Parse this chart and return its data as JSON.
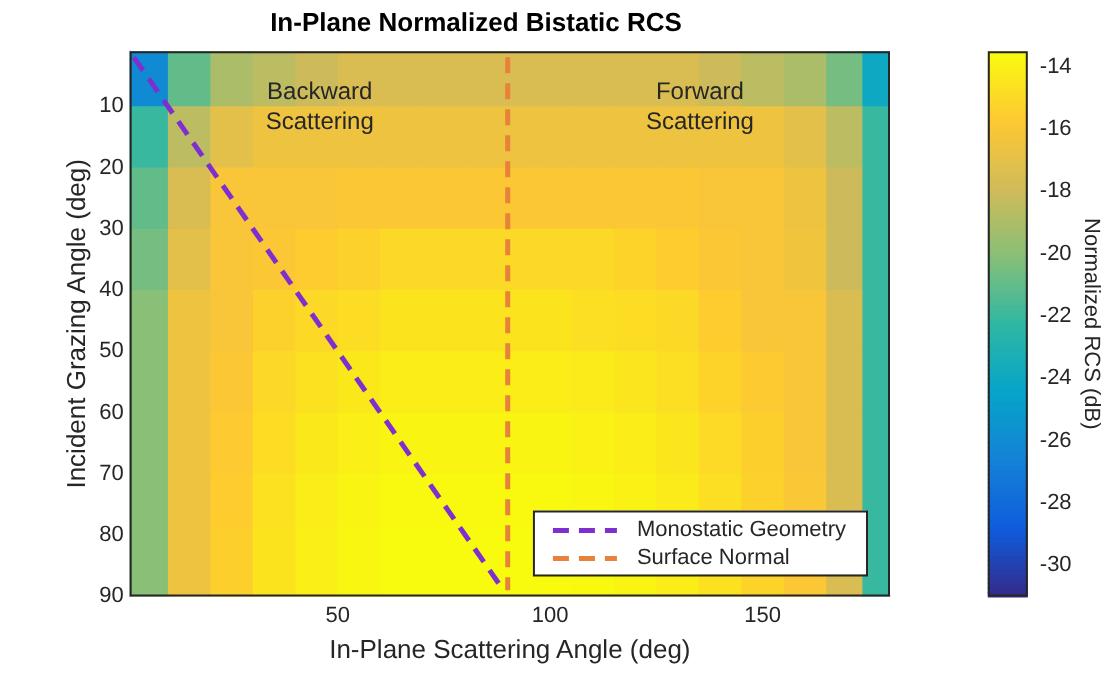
{
  "chart_data": {
    "type": "heatmap",
    "title": "In-Plane Normalized Bistatic RCS",
    "xlabel": "In-Plane Scattering Angle (deg)",
    "ylabel": "Incident Grazing Angle (deg)",
    "clabel": "Normalized RCS (dB)",
    "x": [
      5,
      15,
      25,
      35,
      45,
      55,
      65,
      75,
      85,
      93,
      100,
      110,
      120,
      130,
      140,
      150,
      160,
      170,
      177
    ],
    "y": [
      5,
      15,
      25,
      35,
      45,
      55,
      65,
      75,
      82,
      89
    ],
    "cells": [
      [
        -26,
        -21,
        -19,
        -18.5,
        -18,
        -17.5,
        -17.5,
        -17.5,
        -17.5,
        -17.5,
        -17.5,
        -17.5,
        -17.5,
        -17.5,
        -18,
        -18.5,
        -19,
        -20.5,
        -24
      ],
      [
        -22,
        -18.5,
        -17,
        -16.5,
        -16.5,
        -16.5,
        -16.5,
        -16.5,
        -16.5,
        -16.5,
        -16.5,
        -16.5,
        -16.5,
        -16.5,
        -16.5,
        -16.5,
        -17,
        -18.5,
        -22
      ],
      [
        -21,
        -17.5,
        -16,
        -16,
        -16,
        -15.8,
        -15.8,
        -15.8,
        -15.8,
        -15.8,
        -15.8,
        -15.8,
        -15.8,
        -15.8,
        -16,
        -16,
        -16.5,
        -18,
        -22
      ],
      [
        -20.5,
        -17,
        -16,
        -15.8,
        -15.5,
        -15.3,
        -15,
        -15,
        -15,
        -15,
        -15,
        -15,
        -15.2,
        -15.5,
        -15.8,
        -16,
        -16.3,
        -18,
        -22
      ],
      [
        -20,
        -16.5,
        -16,
        -15.3,
        -15,
        -14.8,
        -14.5,
        -14.5,
        -14.5,
        -14.5,
        -14.5,
        -14.7,
        -14.8,
        -15,
        -15.5,
        -16,
        -16,
        -17.5,
        -22
      ],
      [
        -20,
        -16.5,
        -15.8,
        -15,
        -14.6,
        -14.3,
        -14.1,
        -14.1,
        -14.1,
        -14.1,
        -14.1,
        -14.2,
        -14.4,
        -14.7,
        -15.2,
        -15.6,
        -16,
        -17.5,
        -22
      ],
      [
        -20,
        -16.5,
        -15.6,
        -14.8,
        -14.3,
        -14,
        -13.8,
        -13.8,
        -13.8,
        -13.8,
        -13.8,
        -13.9,
        -14.1,
        -14.4,
        -14.9,
        -15.4,
        -16,
        -17.5,
        -22
      ],
      [
        -20,
        -16.5,
        -15.5,
        -14.6,
        -14.1,
        -13.8,
        -13.6,
        -13.6,
        -13.6,
        -13.6,
        -13.6,
        -13.7,
        -13.9,
        -14.2,
        -14.7,
        -15.3,
        -15.9,
        -17.5,
        -22
      ],
      [
        -20,
        -16.5,
        -15.4,
        -14.5,
        -14,
        -13.7,
        -13.5,
        -13.5,
        -13.5,
        -13.5,
        null,
        null,
        null,
        null,
        null,
        null,
        null,
        null,
        -22
      ],
      [
        -20,
        -16.5,
        -15.4,
        -14.5,
        -14,
        -13.7,
        -13.5,
        -13.5,
        -13.5,
        -13.5,
        -13.5,
        -13.6,
        -13.8,
        -14.1,
        -14.6,
        -15.2,
        -15.8,
        -17.5,
        -22
      ]
    ],
    "xlim": [
      1,
      180
    ],
    "xticks": [
      50,
      100,
      150
    ],
    "ylim": [
      90,
      1
    ],
    "yticks": [
      10,
      20,
      30,
      40,
      50,
      60,
      70,
      80,
      90
    ],
    "clim": [
      -31,
      -13.5
    ],
    "cticks": [
      -30,
      -28,
      -26,
      -24,
      -22,
      -20,
      -18,
      -16,
      -14
    ],
    "series": [
      {
        "name": "Monostatic Geometry",
        "type": "line",
        "color": "#7e2fd0",
        "line_style": "dashed",
        "x": [
          2,
          89
        ],
        "values": [
          2,
          89
        ]
      },
      {
        "name": "Surface Normal",
        "type": "line",
        "color": "#e8823a",
        "line_style": "dashed",
        "x": [
          90,
          90
        ],
        "values": [
          2,
          89
        ]
      }
    ],
    "annotations": [
      "Backward\nScattering",
      "Forward\nScattering"
    ],
    "legend": "bottom right",
    "grid": false
  }
}
